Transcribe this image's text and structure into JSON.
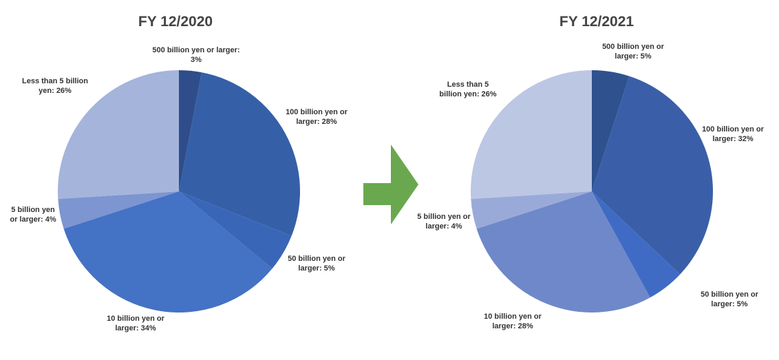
{
  "chart_data": [
    {
      "type": "pie",
      "title": "FY 12/2020",
      "values": [
        3,
        28,
        5,
        34,
        4,
        26
      ],
      "value_labels": [
        "500 billion yen or larger: 3%",
        "100 billion yen or larger: 28%",
        "50 billion yen or larger: 5%",
        "10 billion yen or larger: 34%",
        "5 billion yen or larger: 4%",
        "Less than 5 billion yen: 26%"
      ],
      "colors": [
        "#2e4d8a",
        "#3560a8",
        "#3a66b8",
        "#4472c4",
        "#7d95d0",
        "#a5b4db"
      ]
    },
    {
      "type": "pie",
      "title": "FY 12/2021",
      "values": [
        5,
        32,
        5,
        28,
        4,
        26
      ],
      "value_labels": [
        "500 billion yen or larger: 5%",
        "100 billion yen or larger: 32%",
        "50 billion yen or larger: 5%",
        "10 billion yen or larger: 28%",
        "5 billion yen or larger: 4%",
        "Less than 5 billion yen: 26%"
      ],
      "colors": [
        "#2f528f",
        "#3a5fa8",
        "#3f6bc4",
        "#6f88c9",
        "#9aaad8",
        "#bcc7e4"
      ]
    }
  ]
}
